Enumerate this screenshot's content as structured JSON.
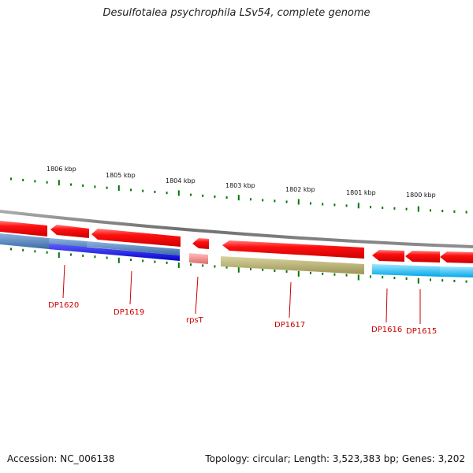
{
  "title": "Desulfotalea psychrophila LSv54, complete genome",
  "footer": {
    "accession": "Accession: NC_006138",
    "topology": "Topology: circular; Length: 3,523,383 bp; Genes: 3,202"
  },
  "scale_labels": [
    "1806 kbp",
    "1805 kbp",
    "1804 kbp",
    "1803 kbp",
    "1802 kbp",
    "1801 kbp",
    "1800 kbp"
  ],
  "gene_labels": [
    "DP1620",
    "DP1619",
    "rpsT",
    "DP1617",
    "DP1616",
    "DP1615"
  ],
  "colors": {
    "forward_cds": "#ee0000",
    "backbone": "#808080",
    "tick": "#007700",
    "gene_label": "#cc0000",
    "dp1620": "#4a7ab5",
    "dp1619": "#0000ee",
    "rpsT": "#f08080",
    "dp1617": "#b5ad6b",
    "dp1616": "#00bfff",
    "dp1615": "#00bfff"
  }
}
